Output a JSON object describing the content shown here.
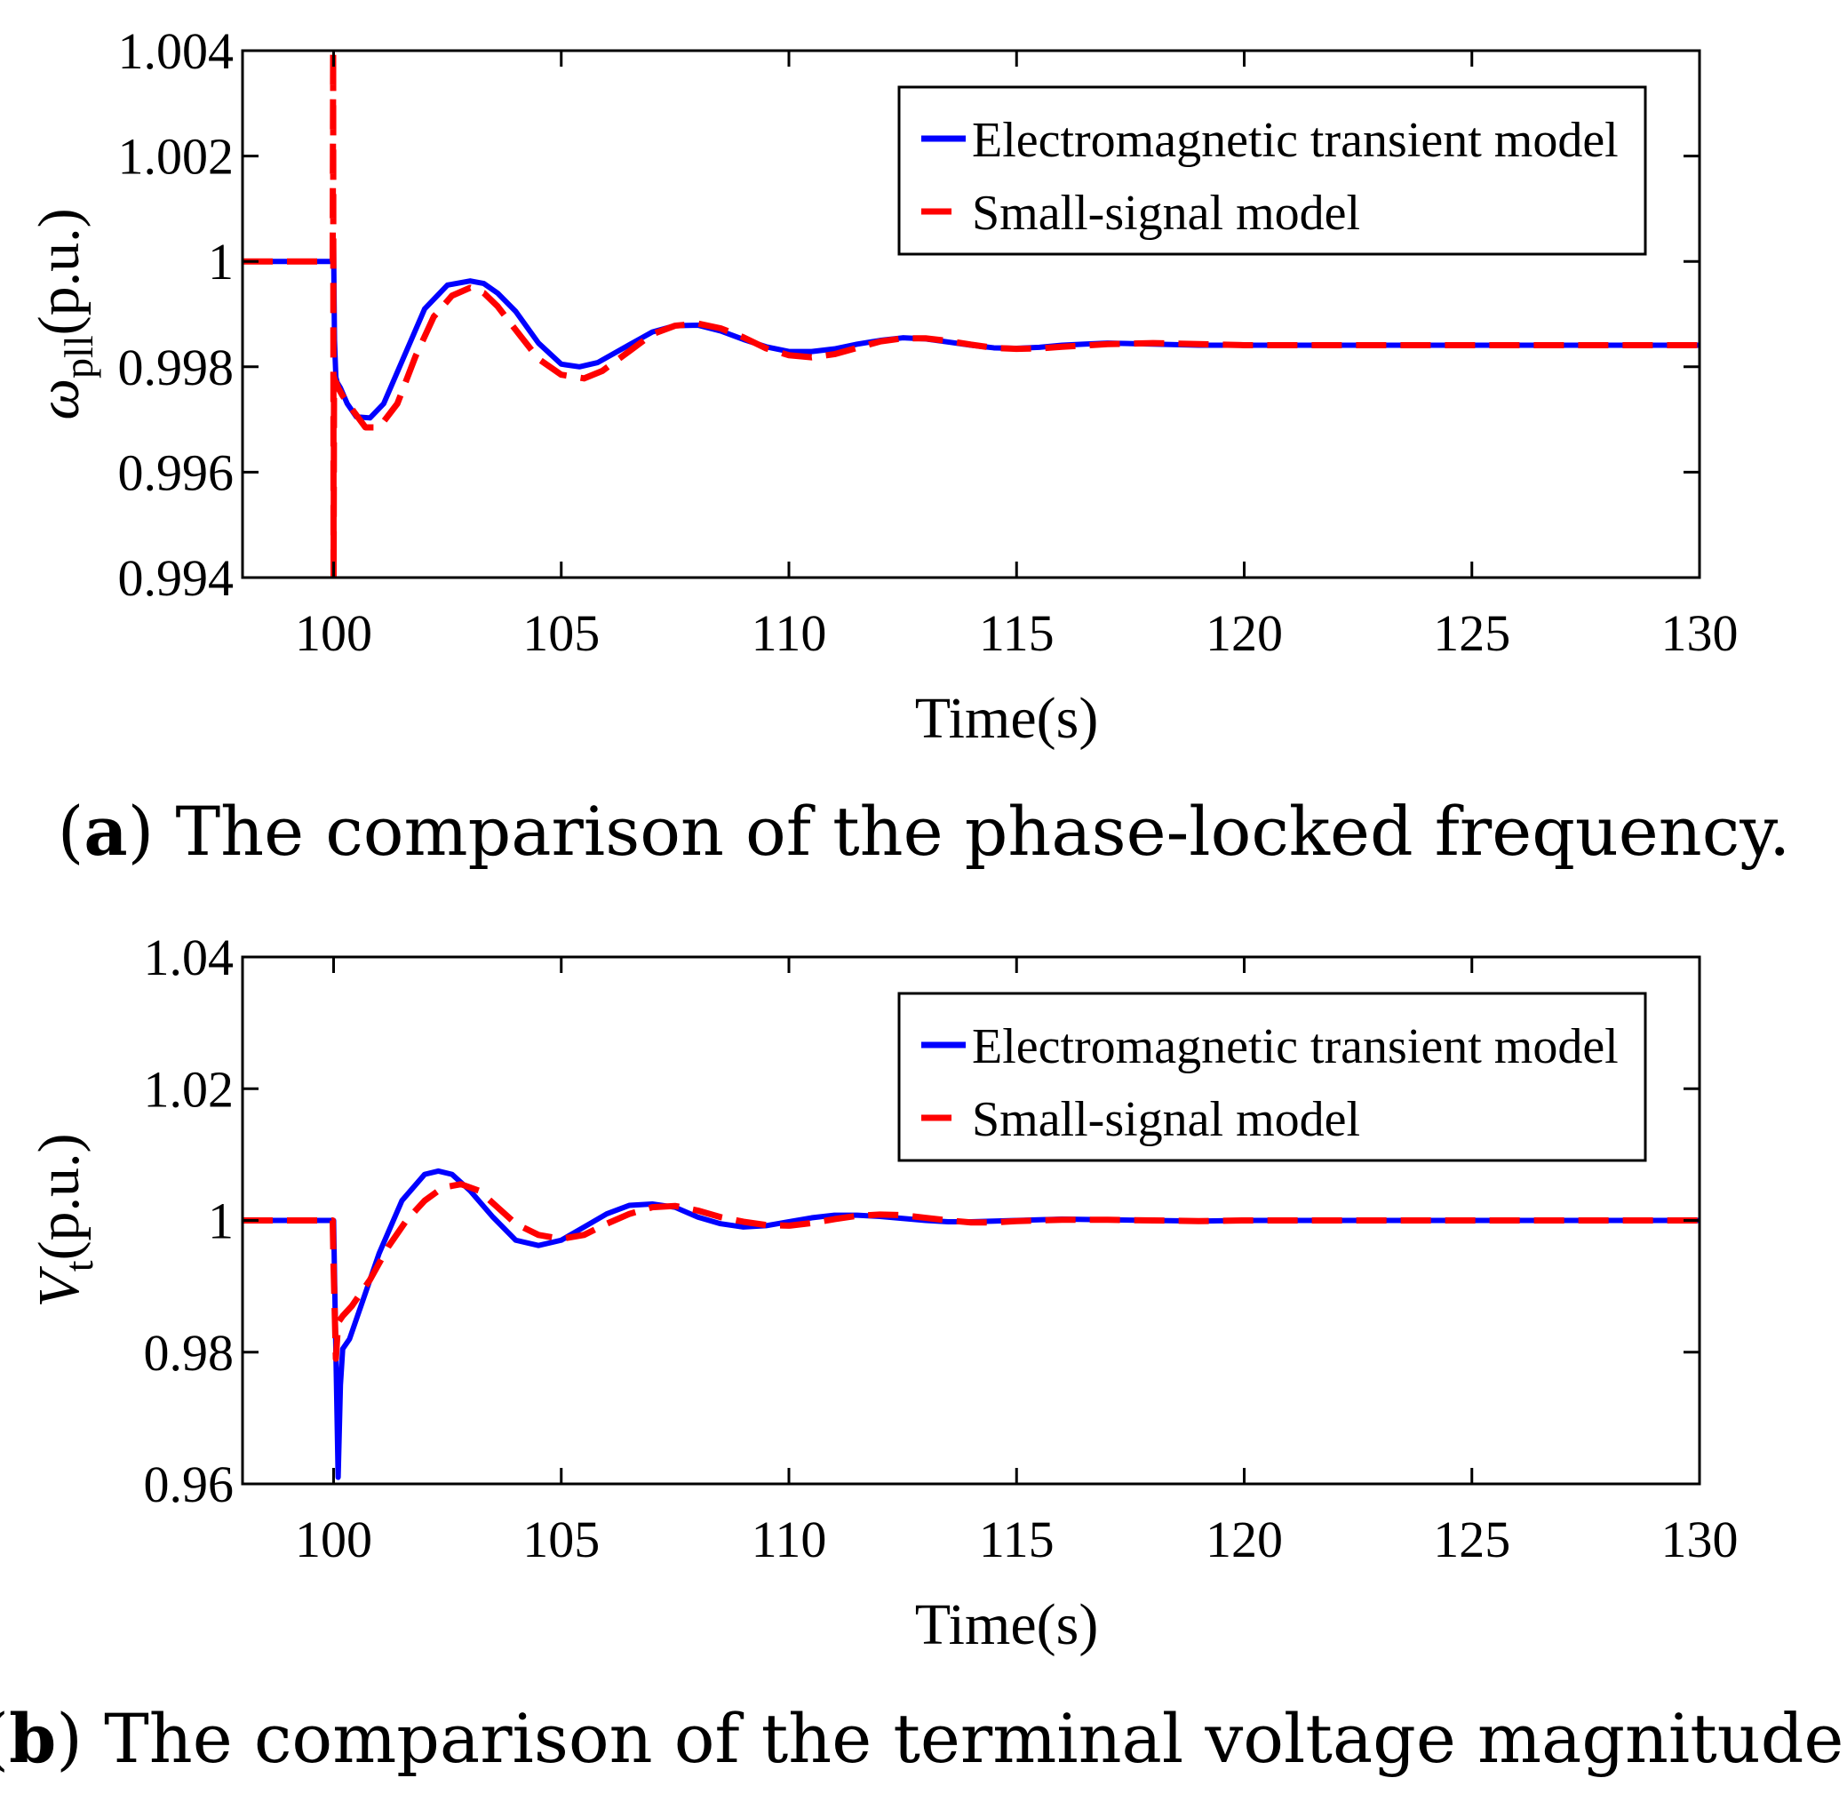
{
  "chart_data": [
    {
      "type": "line",
      "caption_label": "a",
      "caption_text": "The comparison of the phase-locked frequency.",
      "xlabel": "Time(s)",
      "ylabel_symbol": "ω",
      "ylabel_sub": "pll",
      "ylabel_unit": "(p.u.)",
      "xlim": [
        98,
        130
      ],
      "ylim": [
        0.994,
        1.004
      ],
      "xticks": [
        100,
        105,
        110,
        115,
        120,
        125,
        130
      ],
      "xtick_labels": [
        "100",
        "105",
        "110",
        "115",
        "120",
        "125",
        "130"
      ],
      "yticks": [
        0.994,
        0.996,
        0.998,
        1.0,
        1.002,
        1.004
      ],
      "ytick_labels": [
        "0.994",
        "0.996",
        "0.998",
        "1",
        "1.002",
        "1.004"
      ],
      "legend_position": "top-right",
      "grid": false,
      "series": [
        {
          "name": "Electromagnetic transient model",
          "color": "#0000ff",
          "style": "solid",
          "x": [
            98,
            99.98,
            100.0,
            100.02,
            100.05,
            100.08,
            100.15,
            100.3,
            100.5,
            100.8,
            101.1,
            101.5,
            102.0,
            102.5,
            103.0,
            103.3,
            103.6,
            104.0,
            104.5,
            105.0,
            105.4,
            105.8,
            106.5,
            107.0,
            107.5,
            108.0,
            108.5,
            109.0,
            109.5,
            110.0,
            110.5,
            111.0,
            111.5,
            112.0,
            112.5,
            113.0,
            113.5,
            114.0,
            114.5,
            115.0,
            115.5,
            116.0,
            116.5,
            117.0,
            118.0,
            119.0,
            120.0,
            122.0,
            124.0,
            126.0,
            128.0,
            130.0
          ],
          "y": [
            1.0,
            1.0,
            1.0003,
            0.9985,
            0.9978,
            0.9977,
            0.9976,
            0.9973,
            0.99705,
            0.99703,
            0.9973,
            0.9981,
            0.9991,
            0.99955,
            0.99963,
            0.99958,
            0.9994,
            0.99905,
            0.99845,
            0.99805,
            0.998,
            0.99808,
            0.99842,
            0.99866,
            0.99878,
            0.99879,
            0.99868,
            0.99852,
            0.99838,
            0.99829,
            0.99829,
            0.99834,
            0.99843,
            0.9985,
            0.99855,
            0.99853,
            0.99847,
            0.99841,
            0.99836,
            0.99835,
            0.99837,
            0.99841,
            0.99843,
            0.99845,
            0.99843,
            0.99841,
            0.99841,
            0.99841,
            0.99841,
            0.99841,
            0.99841,
            0.99841
          ]
        },
        {
          "name": "Small-signal model",
          "color": "#ff0000",
          "style": "dashed",
          "x": [
            98,
            99.98,
            99.99,
            100.0,
            100.01,
            100.03,
            100.06,
            100.1,
            100.2,
            100.4,
            100.7,
            101.0,
            101.4,
            101.8,
            102.2,
            102.6,
            103.0,
            103.3,
            103.6,
            104.0,
            104.5,
            105.0,
            105.5,
            105.9,
            106.5,
            107.0,
            107.5,
            108.0,
            108.5,
            109.0,
            109.5,
            110.0,
            110.5,
            111.0,
            111.5,
            112.0,
            112.5,
            113.0,
            113.5,
            114.0,
            114.5,
            115.0,
            115.5,
            116.0,
            117.0,
            118.0,
            119.0,
            120.0,
            122.0,
            124.0,
            126.0,
            128.0,
            130.0
          ],
          "y": [
            1.0,
            1.0,
            1.004,
            0.994,
            0.9978,
            0.9977,
            0.9977,
            0.9976,
            0.99745,
            0.9972,
            0.99685,
            0.99685,
            0.9973,
            0.9982,
            0.99895,
            0.99935,
            0.9995,
            0.9994,
            0.99915,
            0.9987,
            0.99815,
            0.99785,
            0.99778,
            0.99792,
            0.9983,
            0.99862,
            0.99878,
            0.99882,
            0.99873,
            0.99856,
            0.99835,
            0.99822,
            0.99818,
            0.99824,
            0.99836,
            0.99848,
            0.99854,
            0.99854,
            0.99849,
            0.99842,
            0.99836,
            0.99834,
            0.99835,
            0.99838,
            0.99843,
            0.99845,
            0.99843,
            0.99841,
            0.99841,
            0.99841,
            0.99841,
            0.99841,
            0.99841
          ]
        }
      ]
    },
    {
      "type": "line",
      "caption_label": "b",
      "caption_text": "The comparison of the terminal voltage magnitude.",
      "xlabel": "Time(s)",
      "ylabel_symbol": "V",
      "ylabel_sub": "t",
      "ylabel_unit": "(p.u.)",
      "xlim": [
        98,
        130
      ],
      "ylim": [
        0.96,
        1.04
      ],
      "xticks": [
        100,
        105,
        110,
        115,
        120,
        125,
        130
      ],
      "xtick_labels": [
        "100",
        "105",
        "110",
        "115",
        "120",
        "125",
        "130"
      ],
      "yticks": [
        0.96,
        0.98,
        1.0,
        1.02,
        1.04
      ],
      "ytick_labels": [
        "0.96",
        "0.98",
        "1",
        "1.02",
        "1.04"
      ],
      "legend_position": "top-right",
      "grid": false,
      "series": [
        {
          "name": "Electromagnetic transient model",
          "color": "#0000ff",
          "style": "solid",
          "x": [
            98,
            99.98,
            100.0,
            100.05,
            100.1,
            100.15,
            100.2,
            100.35,
            100.6,
            101.0,
            101.5,
            102.0,
            102.3,
            102.6,
            103.0,
            103.5,
            104.0,
            104.5,
            105.0,
            105.5,
            106.0,
            106.5,
            107.0,
            107.5,
            108.0,
            108.5,
            109.0,
            109.5,
            110.0,
            110.5,
            111.0,
            111.5,
            112.0,
            112.5,
            113.0,
            113.5,
            114.0,
            114.5,
            115.0,
            116.0,
            117.0,
            118.0,
            119.0,
            120.0,
            122.0,
            124.0,
            126.0,
            128.0,
            130.0
          ],
          "y": [
            1.0,
            1.0,
            1.0,
            0.98,
            0.961,
            0.975,
            0.9805,
            0.982,
            0.987,
            0.995,
            1.003,
            1.007,
            1.0075,
            1.007,
            1.0045,
            1.0005,
            0.997,
            0.9962,
            0.997,
            0.999,
            1.001,
            1.0023,
            1.0025,
            1.002,
            1.0005,
            0.9995,
            0.999,
            0.9992,
            0.9998,
            1.0004,
            1.0008,
            1.0008,
            1.0006,
            1.0003,
            1.0,
            0.9998,
            0.9998,
            0.9999,
            1.0,
            1.0002,
            1.0001,
            1.0,
            0.9999,
            1.0,
            1.0,
            1.0,
            1.0,
            1.0,
            1.0
          ]
        },
        {
          "name": "Small-signal model",
          "color": "#ff0000",
          "style": "dashed",
          "x": [
            98,
            99.98,
            100.0,
            100.05,
            100.1,
            100.2,
            100.4,
            100.8,
            101.2,
            101.6,
            102.0,
            102.4,
            102.8,
            103.2,
            103.6,
            104.0,
            104.5,
            105.0,
            105.5,
            106.0,
            106.5,
            107.0,
            107.5,
            108.0,
            108.5,
            109.0,
            109.5,
            110.0,
            110.5,
            111.0,
            111.5,
            112.0,
            112.5,
            113.0,
            113.5,
            114.0,
            114.5,
            115.0,
            116.0,
            117.0,
            118.0,
            119.0,
            120.0,
            122.0,
            124.0,
            126.0,
            128.0,
            130.0
          ],
          "y": [
            1.0,
            1.0,
            0.993,
            0.979,
            0.9845,
            0.9855,
            0.987,
            0.991,
            0.996,
            1.0,
            1.003,
            1.005,
            1.0055,
            1.0045,
            1.002,
            0.9995,
            0.9978,
            0.9972,
            0.9978,
            0.9995,
            1.001,
            1.002,
            1.0022,
            1.0015,
            1.0005,
            0.9998,
            0.9993,
            0.9992,
            0.9996,
            1.0002,
            1.0007,
            1.0009,
            1.0008,
            1.0004,
            1.0,
            0.9997,
            0.9997,
            0.9999,
            1.0001,
            1.0001,
            1.0,
            0.9999,
            1.0,
            1.0,
            1.0,
            1.0,
            1.0,
            1.0
          ]
        }
      ]
    }
  ]
}
